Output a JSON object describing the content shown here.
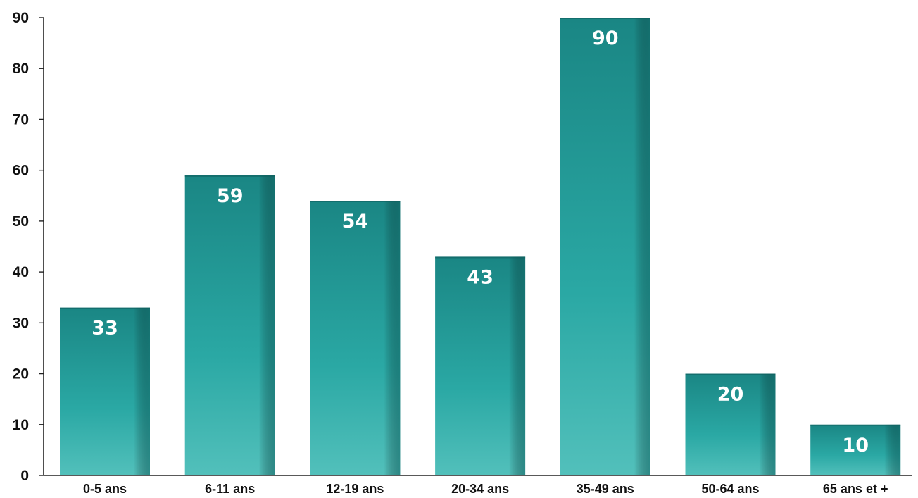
{
  "chart_data": {
    "type": "bar",
    "title": "",
    "xlabel": "",
    "ylabel": "",
    "categories": [
      "0-5 ans",
      "6-11 ans",
      "12-19 ans",
      "20-34 ans",
      "35-49 ans",
      "50-64 ans",
      "65 ans et +"
    ],
    "values": [
      33,
      59,
      54,
      43,
      90,
      20,
      10
    ],
    "ylim": [
      0,
      90
    ],
    "yticks": [
      0,
      10,
      20,
      30,
      40,
      50,
      60,
      70,
      80,
      90
    ],
    "grid": false,
    "legend": "none",
    "data_labels": "inside-top",
    "colors": {
      "bar_top": "#1a8684",
      "bar_mid": "#2aa8a4",
      "bar_bottom": "#52c0bb",
      "bar_shadow": "#0f5f5e",
      "axis": "#222222",
      "label_text": "#ffffff",
      "tick_text": "#111111"
    }
  }
}
